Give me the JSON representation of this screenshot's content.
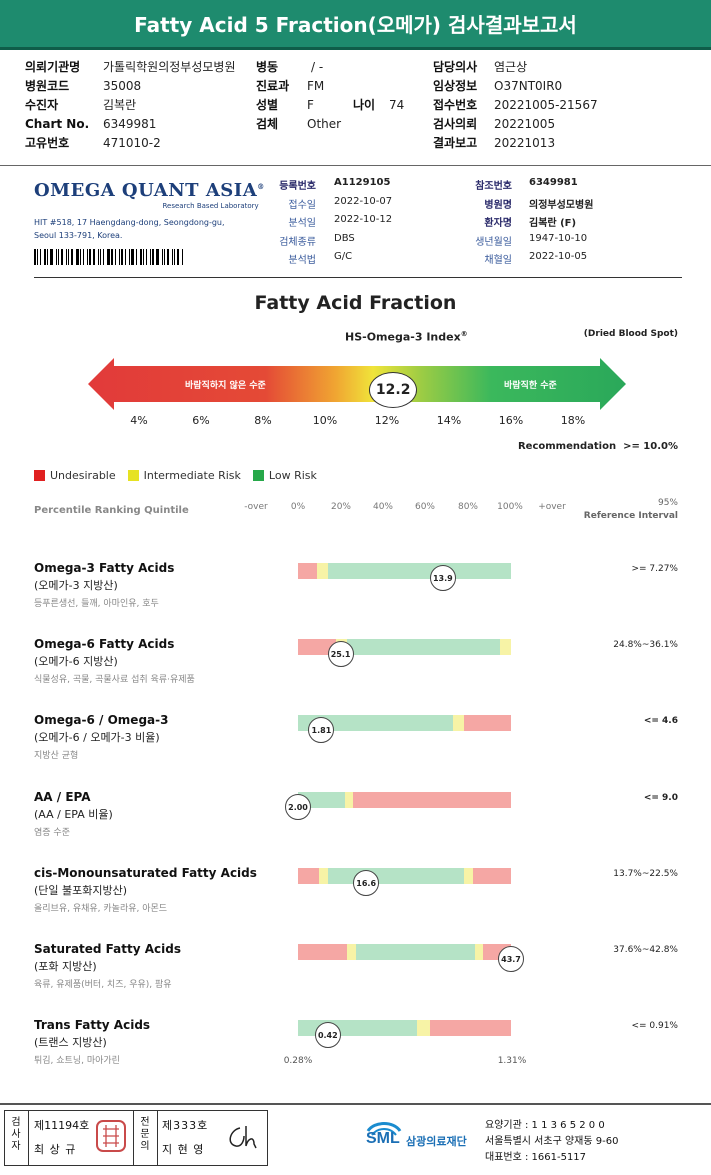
{
  "header": {
    "title": "Fatty Acid 5 Fraction(오메가) 검사결과보고서"
  },
  "patient": {
    "col1": [
      {
        "label": "의뢰기관명",
        "value": "가톨릭학원의정부성모병원"
      },
      {
        "label": "병원코드",
        "value": "35008"
      },
      {
        "label": "수진자",
        "value": "김복란"
      },
      {
        "label": "Chart No.",
        "value": "6349981"
      },
      {
        "label": "고유번호",
        "value": "471010-2"
      }
    ],
    "col2": [
      {
        "label": "병동",
        "value": "/ -"
      },
      {
        "label": "진료과",
        "value": "FM"
      },
      {
        "label": "성별",
        "value": "F"
      },
      {
        "label": "검체",
        "value": "Other"
      }
    ],
    "age": {
      "label": "나이",
      "value": "74"
    },
    "col3": [
      {
        "label": "담당의사",
        "value": "염근상"
      },
      {
        "label": "임상정보",
        "value": "O37NT0IR0"
      },
      {
        "label": "접수번호",
        "value": "20221005-21567"
      },
      {
        "label": "검사의뢰",
        "value": "20221005"
      },
      {
        "label": "결과보고",
        "value": "20221013"
      }
    ]
  },
  "lab": {
    "name": "OMEGA QUANT ASIA",
    "reg_mark": "®",
    "tagline": "Research Based Laboratory",
    "address_line1": "HIT #518, 17 Haengdang-dong, Seongdong-gu,",
    "address_line2": "Seoul 133-791, Korea."
  },
  "sample": {
    "left": [
      {
        "label": "등록번호",
        "value": "A1129105",
        "emph": true
      },
      {
        "label": "접수일",
        "value": "2022-10-07"
      },
      {
        "label": "분석일",
        "value": "2022-10-12"
      },
      {
        "label": "검체종류",
        "value": "DBS"
      },
      {
        "label": "분석법",
        "value": "G/C"
      }
    ],
    "right": [
      {
        "label": "참조번호",
        "value": "6349981",
        "emph": true
      },
      {
        "label": "병원명",
        "value": "의정부성모병원",
        "emph": true
      },
      {
        "label": "환자명",
        "value": "김복란 (F)",
        "emph": true
      },
      {
        "label": "생년월일",
        "value": "1947-10-10"
      },
      {
        "label": "채혈일",
        "value": "2022-10-05"
      }
    ]
  },
  "fraction": {
    "title": "Fatty Acid Fraction",
    "index_label": "HS-Omega-3 Index",
    "index_sup": "®",
    "specimen_note": "(Dried Blood Spot)",
    "undesirable_zone": "바람직하지 않은 수준",
    "desirable_zone": "바람직한 수준",
    "index_value": "12.2",
    "index_number": 12.2,
    "scale_min": 3.0,
    "scale_max": 19.8,
    "ticks": [
      "4%",
      "6%",
      "8%",
      "10%",
      "12%",
      "14%",
      "16%",
      "18%"
    ],
    "recommendation_label": "Recommendation",
    "recommendation_value": ">= 10.0%",
    "colors": {
      "red": "#e23a3a",
      "yellow": "#f0e43a",
      "green": "#2fb25a"
    }
  },
  "legend": [
    {
      "label": "Undesirable",
      "color": "#e02020"
    },
    {
      "label": "Intermediate Risk",
      "color": "#e6e222"
    },
    {
      "label": "Low Risk",
      "color": "#27a84a"
    }
  ],
  "percentile": {
    "title": "Percentile Ranking Quintile",
    "ticks": [
      "-over",
      "0%",
      "20%",
      "40%",
      "60%",
      "80%",
      "100%",
      "+over"
    ],
    "ref_line1": "95%",
    "ref_line2": "Reference Interval"
  },
  "markers": [
    {
      "name": "Omega-3 Fatty Acids",
      "sub": "(오메가-3 지방산)",
      "food": "등푸른생선, 들깨, 아마인유, 호두",
      "value": "13.9",
      "position": 68,
      "ref": ">= 7.27%",
      "ref_bold": false,
      "segments": [
        [
          "red",
          9
        ],
        [
          "yel",
          5
        ],
        [
          "grn",
          86
        ]
      ]
    },
    {
      "name": "Omega-6 Fatty Acids",
      "sub": "(오메가-6 지방산)",
      "food": "식물성유, 곡물, 곡물사료 섭취 육류·유제품",
      "value": "25.1",
      "position": 20,
      "ref": "24.8%~36.1%",
      "ref_bold": false,
      "segments": [
        [
          "red",
          18
        ],
        [
          "yel",
          5
        ],
        [
          "grn",
          72
        ],
        [
          "yel",
          5
        ]
      ]
    },
    {
      "name": "Omega-6 / Omega-3",
      "sub": "(오메가-6 / 오메가-3 비율)",
      "food": "지방산 균형",
      "value": "1.81",
      "position": 11,
      "ref": "<= 4.6",
      "ref_bold": true,
      "segments": [
        [
          "grn",
          73
        ],
        [
          "yel",
          5
        ],
        [
          "red",
          22
        ]
      ]
    },
    {
      "name": "AA / EPA",
      "sub": "(AA / EPA 비율)",
      "food": "염증 수준",
      "value": "2.00",
      "position": 0,
      "ref": "<= 9.0",
      "ref_bold": true,
      "segments": [
        [
          "grn",
          22
        ],
        [
          "yel",
          4
        ],
        [
          "red",
          74
        ]
      ]
    },
    {
      "name": "cis-Monounsaturated Fatty Acids",
      "sub": "(단일 불포화지방산)",
      "food": "올리브유, 유채유, 카놀라유, 아몬드",
      "value": "16.6",
      "position": 32,
      "ref": "13.7%~22.5%",
      "ref_bold": false,
      "segments": [
        [
          "red",
          10
        ],
        [
          "yel",
          4
        ],
        [
          "grn",
          64
        ],
        [
          "yel",
          4
        ],
        [
          "red",
          18
        ]
      ]
    },
    {
      "name": "Saturated Fatty Acids",
      "sub": "(포화 지방산)",
      "food": "육류, 유제품(버터, 치즈, 우유), 팜유",
      "value": "43.7",
      "position": 100,
      "ref": "37.6%~42.8%",
      "ref_bold": false,
      "segments": [
        [
          "red",
          23
        ],
        [
          "yel",
          4
        ],
        [
          "grn",
          56
        ],
        [
          "yel",
          4
        ],
        [
          "red",
          13
        ]
      ]
    },
    {
      "name": "Trans Fatty Acids",
      "sub": "(트랜스 지방산)",
      "food": "튀김, 쇼트닝, 마아가린",
      "value": "0.42",
      "position": 14,
      "ref": "<= 0.91%",
      "ref_bold": false,
      "segments": [
        [
          "grn",
          56
        ],
        [
          "yel",
          6
        ],
        [
          "red",
          38
        ]
      ]
    }
  ],
  "trans_axis": {
    "left": "0.28%",
    "right": "1.31%"
  },
  "footer": {
    "examiner_vertical": "검사자",
    "examiner_no": "제11194호",
    "examiner_name": "최 상 규",
    "specialist_vertical": "전문의",
    "specialist_no": "제333호",
    "specialist_name": "지 현 영",
    "org_logo": "SML",
    "org_name": "삼광의료재단",
    "line1": "요양기관 : 1 1 3 6 5 2 0 0",
    "line2": "서울특별시 서초구 양재동 9-60",
    "line3": "대표번호 : 1661-5117"
  }
}
